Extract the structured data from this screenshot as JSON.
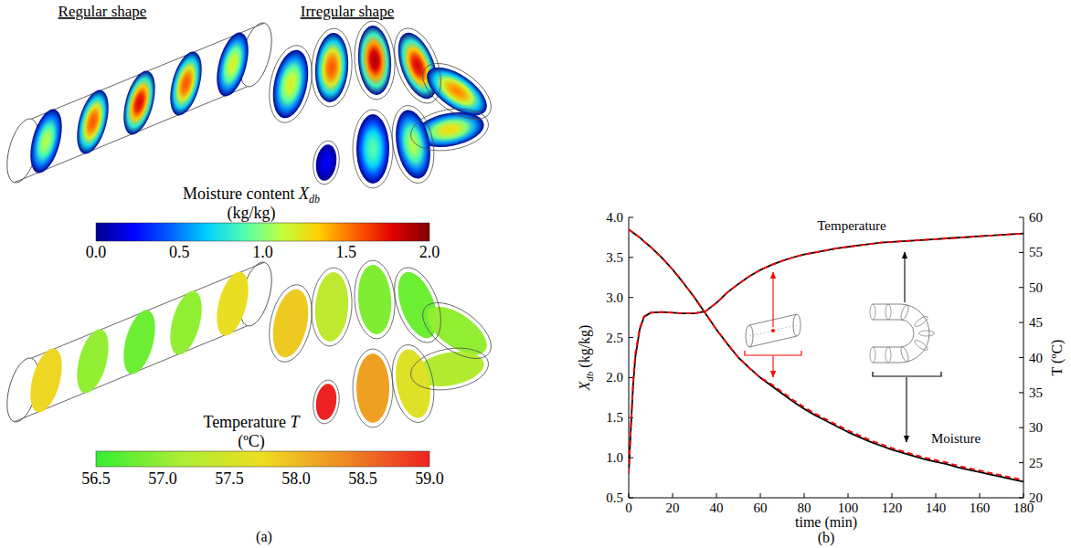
{
  "panel_a": {
    "panel_label": "(a)",
    "headings": [
      "Regular shape",
      "Irregular shape"
    ],
    "moisture": {
      "name": "Moisture content",
      "symbol": "X",
      "subscript": "db",
      "unit": "(kg/kg)",
      "range": [
        0,
        2
      ],
      "ticks": [
        {
          "value": 0,
          "label": "0.0"
        },
        0.5,
        {
          "value": 1,
          "label": "1.0"
        },
        1.5,
        {
          "value": 2,
          "label": "2.0"
        }
      ],
      "colors": [
        "#00008f",
        "#0000ff",
        "#0060ff",
        "#00d0ff",
        "#50ffaf",
        "#c0ff40",
        "#ffd000",
        "#ff6000",
        "#e00000",
        "#800000"
      ],
      "regular": [
        1.1,
        1.6,
        1.8,
        1.6,
        1.2
      ],
      "irregular": [
        1.2,
        1.6,
        1.9,
        1.8,
        1.5,
        1.3,
        1.1,
        0.9,
        0.2
      ]
    },
    "temperature": {
      "name": "Temperature",
      "symbol": "T",
      "unit": "(ºC)",
      "range": [
        56.5,
        59
      ],
      "ticks": [
        56.5,
        {
          "value": 57,
          "label": "57.0"
        },
        57.5,
        {
          "value": 58,
          "label": "58.0"
        },
        58.5,
        {
          "value": 59,
          "label": "59.0"
        }
      ],
      "colors": [
        "#33ee33",
        "#aaee33",
        "#eedd22",
        "#ee8822",
        "#ee2222"
      ],
      "regular": [
        57.8,
        57.0,
        56.8,
        57.0,
        57.7
      ],
      "irregular": [
        57.9,
        57.3,
        56.9,
        56.8,
        57.0,
        57.2,
        57.6,
        58.2,
        59.0
      ]
    }
  },
  "chart_data": {
    "type": "line",
    "panel_label": "(b)",
    "x_label": "time (min)",
    "y_label": {
      "symbol": "X",
      "subscript": "db",
      "unit": "(kg/kg)"
    },
    "y2_label": "T (ºC)",
    "x": [
      0,
      1,
      2,
      3,
      5,
      7,
      10,
      15,
      20,
      25,
      30,
      35,
      40,
      45,
      50,
      55,
      60,
      65,
      70,
      75,
      80,
      85,
      90,
      95,
      100,
      105,
      110,
      115,
      120,
      125,
      130,
      135,
      140,
      145,
      150,
      155,
      160,
      165,
      170,
      175,
      180
    ],
    "xlim": [
      0,
      180
    ],
    "xticks": [
      0,
      20,
      40,
      60,
      80,
      100,
      120,
      140,
      160,
      180
    ],
    "ylim": [
      0.5,
      4
    ],
    "yticks": [
      0.5,
      {
        "value": 1,
        "label": "1.0"
      },
      1.5,
      {
        "value": 2,
        "label": "2.0"
      },
      2.5,
      {
        "value": 3,
        "label": "3.0"
      },
      3.5,
      {
        "value": 4,
        "label": "4.0"
      }
    ],
    "y2lim": [
      20,
      60
    ],
    "y2ticks": [
      20,
      25,
      30,
      35,
      40,
      45,
      50,
      55,
      60
    ],
    "grid": false,
    "series": [
      {
        "color": "#000000",
        "line_style": "solid",
        "values": [
          3.85,
          3.83,
          3.81,
          3.79,
          3.75,
          3.7,
          3.63,
          3.5,
          3.35,
          3.18,
          3.0,
          2.8,
          2.6,
          2.42,
          2.25,
          2.12,
          2.0,
          1.9,
          1.8,
          1.7,
          1.61,
          1.53,
          1.46,
          1.39,
          1.32,
          1.26,
          1.2,
          1.15,
          1.1,
          1.06,
          1.02,
          0.98,
          0.95,
          0.92,
          0.88,
          0.85,
          0.82,
          0.79,
          0.76,
          0.73,
          0.7
        ]
      },
      {
        "color": "#ff0000",
        "line_style": "dashed",
        "values": [
          3.85,
          3.83,
          3.81,
          3.79,
          3.75,
          3.7,
          3.63,
          3.5,
          3.35,
          3.18,
          3.0,
          2.8,
          2.6,
          2.42,
          2.25,
          2.12,
          2.0,
          1.92,
          1.82,
          1.72,
          1.63,
          1.55,
          1.48,
          1.41,
          1.34,
          1.28,
          1.22,
          1.17,
          1.12,
          1.08,
          1.04,
          1.0,
          0.97,
          0.94,
          0.9,
          0.87,
          0.84,
          0.81,
          0.78,
          0.75,
          0.72
        ]
      },
      {
        "color": "#000000",
        "line_style": "solid",
        "axis": "y2",
        "values": [
          23.5,
          30,
          36,
          40,
          44,
          45.8,
          46.4,
          46.5,
          46.4,
          46.3,
          46.3,
          46.6,
          47.8,
          49.3,
          50.5,
          51.6,
          52.5,
          53.2,
          53.8,
          54.3,
          54.7,
          55.0,
          55.3,
          55.6,
          55.8,
          56.0,
          56.2,
          56.4,
          56.5,
          56.6,
          56.7,
          56.8,
          56.9,
          57.0,
          57.1,
          57.2,
          57.3,
          57.4,
          57.5,
          57.6,
          57.7
        ]
      },
      {
        "color": "#ff0000",
        "line_style": "dashed",
        "axis": "y2",
        "values": [
          23.5,
          30.5,
          36.5,
          40.5,
          44.2,
          45.9,
          46.4,
          46.5,
          46.4,
          46.3,
          46.3,
          46.6,
          47.8,
          49.3,
          50.5,
          51.6,
          52.5,
          53.2,
          53.8,
          54.3,
          54.7,
          55.0,
          55.3,
          55.6,
          55.8,
          56.0,
          56.2,
          56.4,
          56.5,
          56.6,
          56.7,
          56.8,
          56.9,
          57.0,
          57.1,
          57.2,
          57.3,
          57.4,
          57.5,
          57.6,
          57.7
        ]
      }
    ],
    "annotations": [
      {
        "text": "Temperature"
      },
      {
        "text": "Moisture"
      }
    ]
  }
}
